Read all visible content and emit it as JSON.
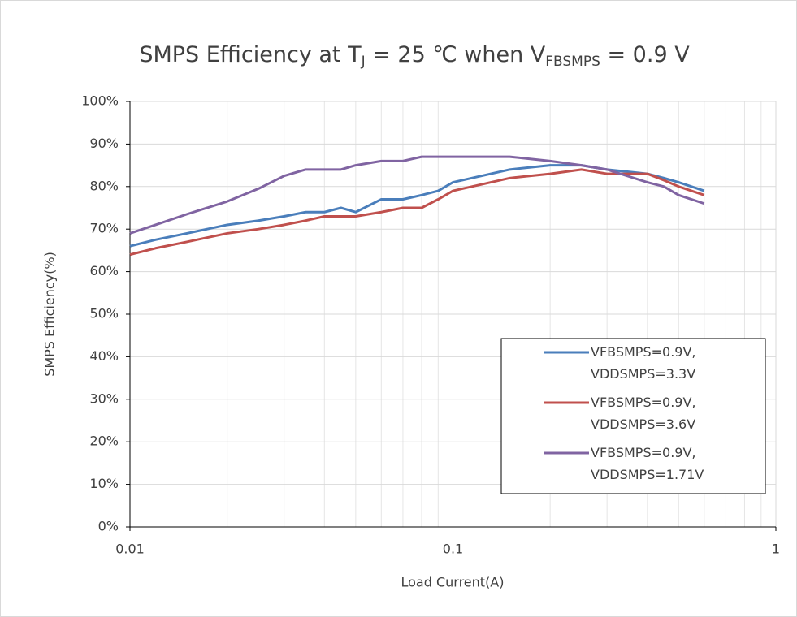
{
  "chart_data": {
    "type": "line",
    "title": [
      "SMPS Efficiency at T",
      "J",
      " = 25 ℃ when V",
      "FBSMPS",
      " = 0.9 V"
    ],
    "xlabel": "Load Current(A)",
    "ylabel": "SMPS Efficiency(%)",
    "x": [
      0.01,
      0.012,
      0.015,
      0.02,
      0.025,
      0.03,
      0.035,
      0.04,
      0.045,
      0.05,
      0.06,
      0.07,
      0.08,
      0.09,
      0.1,
      0.15,
      0.2,
      0.25,
      0.3,
      0.4,
      0.45,
      0.5,
      0.6
    ],
    "series": [
      {
        "name": "VFBSMPS=0.9V, VDDSMPS=3.3V",
        "color": "#4a7ebb",
        "values": [
          66,
          67.5,
          69,
          71,
          72,
          73,
          74,
          74,
          75,
          74,
          77,
          77,
          78,
          79,
          81,
          84,
          85,
          85,
          84,
          83,
          82,
          81,
          79
        ]
      },
      {
        "name": "VFBSMPS=0.9V, VDDSMPS=3.6V",
        "color": "#c0504d",
        "values": [
          64,
          65.5,
          67,
          69,
          70,
          71,
          72,
          73,
          73,
          73,
          74,
          75,
          75,
          77,
          79,
          82,
          83,
          84,
          83,
          83,
          81.5,
          80,
          78
        ]
      },
      {
        "name": "VFBSMPS=0.9V, VDDSMPS=1.71V",
        "color": "#8064a2",
        "values": [
          69,
          71,
          73.5,
          76.5,
          79.5,
          82.5,
          84,
          84,
          84,
          85,
          86,
          86,
          87,
          87,
          87,
          87,
          86,
          85,
          84,
          81,
          80,
          78,
          76
        ]
      }
    ],
    "xlim": [
      0.01,
      1
    ],
    "xticks": [
      0.01,
      0.1,
      1
    ],
    "xscale": "log",
    "ylim": [
      0,
      100
    ],
    "yticks": [
      {
        "value": 0,
        "label": "0%"
      },
      {
        "value": 10,
        "label": "10%"
      },
      {
        "value": 20,
        "label": "20%"
      },
      {
        "value": 30,
        "label": "30%"
      },
      {
        "value": 40,
        "label": "40%"
      },
      {
        "value": 50,
        "label": "50%"
      },
      {
        "value": 60,
        "label": "60%"
      },
      {
        "value": 70,
        "label": "70%"
      },
      {
        "value": 80,
        "label": "80%"
      },
      {
        "value": 90,
        "label": "90%"
      },
      {
        "value": 100,
        "label": "100%"
      }
    ],
    "grid": true,
    "legend": "lower right"
  }
}
